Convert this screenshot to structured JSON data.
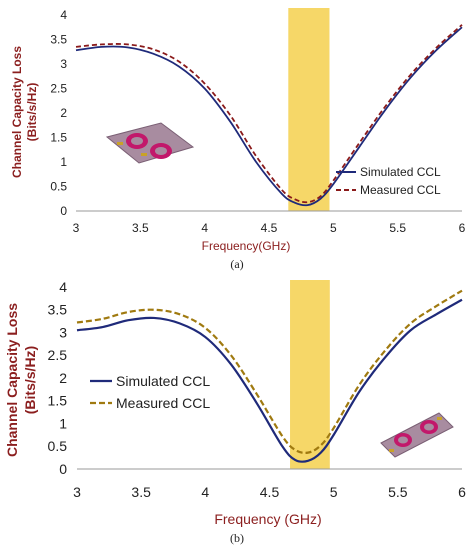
{
  "colors": {
    "simulated": "#1f2a7a",
    "measured_a": "#8b1a1a",
    "measured_b": "#a07a10",
    "highlight": "#f6d768",
    "axis_label": "#8b1e1e",
    "antenna_board": "#a88ca0",
    "antenna_patch": "#c2186b"
  },
  "chart_data": [
    {
      "type": "line",
      "caption": "(a)",
      "xlabel": "Frequency(GHz)",
      "ylabel": "Channel Capacity Loss (Bits/s/Hz)",
      "xlim": [
        3,
        6
      ],
      "ylim": [
        0,
        4
      ],
      "xticks": [
        "3",
        "3.5",
        "4",
        "4.5",
        "5",
        "5.5",
        "6"
      ],
      "yticks": [
        "0",
        "0.5",
        "1",
        "1.5",
        "2",
        "2.5",
        "3",
        "3.5",
        "4"
      ],
      "highlight_band": [
        4.65,
        4.97
      ],
      "legend_position": "right",
      "series": [
        {
          "name": "Simulated CCL",
          "style": "solid",
          "x": [
            3.0,
            3.2,
            3.4,
            3.6,
            3.8,
            4.0,
            4.2,
            4.4,
            4.6,
            4.7,
            4.8,
            4.9,
            5.0,
            5.2,
            5.4,
            5.6,
            5.8,
            6.0
          ],
          "y": [
            3.28,
            3.35,
            3.34,
            3.21,
            2.95,
            2.5,
            1.82,
            1.0,
            0.35,
            0.17,
            0.12,
            0.25,
            0.55,
            1.3,
            2.05,
            2.72,
            3.28,
            3.75
          ]
        },
        {
          "name": "Measured CCL",
          "style": "dashed",
          "x": [
            3.0,
            3.2,
            3.4,
            3.6,
            3.8,
            4.0,
            4.2,
            4.4,
            4.6,
            4.7,
            4.8,
            4.9,
            5.0,
            5.2,
            5.4,
            5.6,
            5.8,
            6.0
          ],
          "y": [
            3.35,
            3.4,
            3.4,
            3.3,
            3.05,
            2.6,
            1.95,
            1.12,
            0.43,
            0.24,
            0.18,
            0.3,
            0.62,
            1.38,
            2.12,
            2.78,
            3.33,
            3.8
          ]
        }
      ]
    },
    {
      "type": "line",
      "caption": "(b)",
      "xlabel": "Frequency (GHz)",
      "ylabel": "Channel Capacity Loss (Bits/s/Hz)",
      "xlim": [
        3,
        6
      ],
      "ylim": [
        0,
        4
      ],
      "xticks": [
        "3",
        "3.5",
        "4",
        "4.5",
        "5",
        "5.5",
        "6"
      ],
      "yticks": [
        "0",
        "0.5",
        "1",
        "1.5",
        "2",
        "2.5",
        "3",
        "3.5",
        "4"
      ],
      "highlight_band": [
        4.66,
        4.97
      ],
      "legend_position": "left",
      "series": [
        {
          "name": "Simulated CCL",
          "style": "solid",
          "x": [
            3.0,
            3.2,
            3.4,
            3.6,
            3.8,
            4.0,
            4.2,
            4.4,
            4.6,
            4.7,
            4.8,
            4.9,
            5.0,
            5.2,
            5.4,
            5.6,
            5.8,
            6.0
          ],
          "y": [
            3.05,
            3.12,
            3.27,
            3.32,
            3.2,
            2.9,
            2.3,
            1.45,
            0.5,
            0.2,
            0.18,
            0.36,
            0.75,
            1.7,
            2.45,
            3.05,
            3.4,
            3.72
          ]
        },
        {
          "name": "Measured CCL",
          "style": "dashed",
          "x": [
            3.0,
            3.2,
            3.4,
            3.6,
            3.8,
            4.0,
            4.2,
            4.4,
            4.6,
            4.7,
            4.8,
            4.9,
            5.0,
            5.2,
            5.4,
            5.6,
            5.8,
            6.0
          ],
          "y": [
            3.22,
            3.3,
            3.45,
            3.5,
            3.4,
            3.1,
            2.5,
            1.65,
            0.72,
            0.42,
            0.36,
            0.52,
            0.9,
            1.85,
            2.6,
            3.2,
            3.58,
            3.92
          ]
        }
      ]
    }
  ]
}
